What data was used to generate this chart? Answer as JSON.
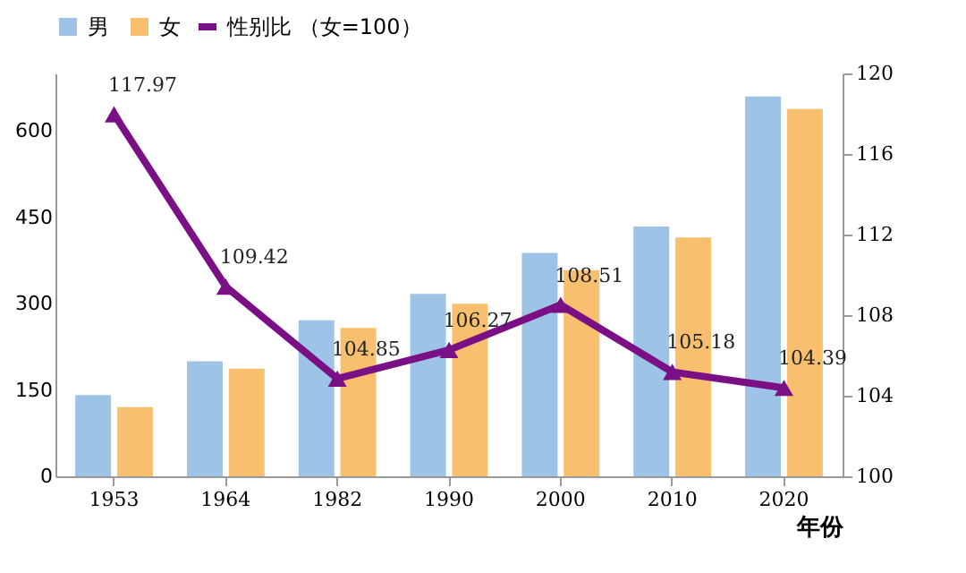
{
  "chart_data": {
    "type": "bar",
    "xlabel": "年份",
    "categories": [
      "1953",
      "1964",
      "1982",
      "1990",
      "2000",
      "2010",
      "2020"
    ],
    "series": [
      {
        "name": "男",
        "color": "#9dc3e6",
        "values": [
          141,
          200,
          271,
          317,
          388,
          434,
          660
        ]
      },
      {
        "name": "女",
        "color": "#f8c06e",
        "values": [
          120,
          187,
          258,
          300,
          358,
          415,
          638
        ]
      },
      {
        "name": "性别比 （女=100）",
        "type": "line",
        "axis": "y2",
        "color": "#7b0f86",
        "marker": "triangle",
        "values": [
          117.97,
          109.42,
          104.85,
          106.27,
          108.51,
          105.18,
          104.39
        ],
        "value_labels": [
          "117.97",
          "109.42",
          "104.85",
          "106.27",
          "108.51",
          "105.18",
          "104.39"
        ]
      }
    ],
    "ylim": [
      0,
      700
    ],
    "yticks": [
      0,
      150,
      300,
      450,
      600
    ],
    "y2lim": [
      100,
      120
    ],
    "y2ticks": [
      100,
      104,
      108,
      112,
      116,
      120
    ],
    "grid": false,
    "legend": "top"
  }
}
